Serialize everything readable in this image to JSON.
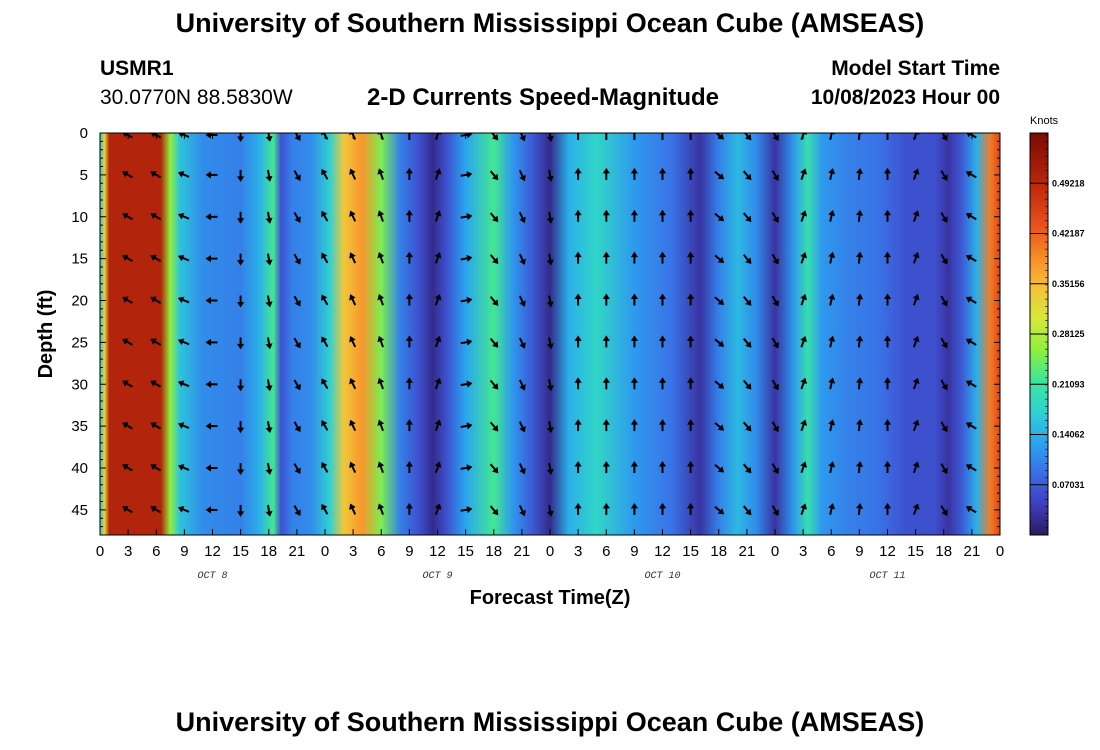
{
  "page": {
    "title": "University of Southern Mississippi Ocean Cube (AMSEAS)",
    "title_repeat": "University of Southern Mississippi Ocean Cube (AMSEAS)",
    "station_id": "USMR1",
    "station_coords": "30.0770N  88.5830W",
    "subtitle": "2-D Currents Speed-Magnitude",
    "model_start_label": "Model Start Time",
    "model_start_value": "10/08/2023 Hour 00"
  },
  "chart_data": {
    "type": "heatmap",
    "title": "2-D Currents Speed-Magnitude",
    "xlabel": "Forecast Time(Z)",
    "ylabel": "Depth (ft)",
    "x_tick_labels": [
      "0",
      "3",
      "6",
      "9",
      "12",
      "15",
      "18",
      "21",
      "0",
      "3",
      "6",
      "9",
      "12",
      "15",
      "18",
      "21",
      "0",
      "3",
      "6",
      "9",
      "12",
      "15",
      "18",
      "21",
      "0",
      "3",
      "6",
      "9",
      "12",
      "15",
      "18",
      "21",
      "0"
    ],
    "x_range_hours": [
      0,
      96
    ],
    "day_labels": [
      {
        "label": "OCT 8",
        "hour": 12
      },
      {
        "label": "OCT 9",
        "hour": 36
      },
      {
        "label": "OCT 10",
        "hour": 60
      },
      {
        "label": "OCT 11",
        "hour": 84
      }
    ],
    "y_tick_labels": [
      "0",
      "5",
      "10",
      "15",
      "20",
      "25",
      "30",
      "35",
      "40",
      "45"
    ],
    "y_range_ft": [
      0,
      48
    ],
    "colorbar": {
      "unit_label": "Knots",
      "range": [
        0,
        0.5625
      ],
      "tick_labels": [
        "0.07031",
        "0.14062",
        "0.21093",
        "0.28125",
        "0.35156",
        "0.42187",
        "0.49218"
      ],
      "colors": [
        "#2a1b5e",
        "#3f3ec0",
        "#3a6fe6",
        "#2aa5f0",
        "#2fd3d0",
        "#3de69a",
        "#8ef03c",
        "#d6e83a",
        "#f6c23a",
        "#f88a28",
        "#e8521c",
        "#c9300f",
        "#a01a08",
        "#7a0c04"
      ]
    },
    "speed_profile_knots": [
      {
        "hour": 0,
        "speed": 0.17
      },
      {
        "hour": 0.5,
        "speed": 0.33
      },
      {
        "hour": 1,
        "speed": 0.5
      },
      {
        "hour": 6.5,
        "speed": 0.5
      },
      {
        "hour": 7.5,
        "speed": 0.26
      },
      {
        "hour": 8.5,
        "speed": 0.16
      },
      {
        "hour": 11,
        "speed": 0.11
      },
      {
        "hour": 15,
        "speed": 0.1
      },
      {
        "hour": 17,
        "speed": 0.14
      },
      {
        "hour": 18.5,
        "speed": 0.22
      },
      {
        "hour": 19.3,
        "speed": 0.06
      },
      {
        "hour": 20.5,
        "speed": 0.1
      },
      {
        "hour": 22.5,
        "speed": 0.11
      },
      {
        "hour": 24.5,
        "speed": 0.17
      },
      {
        "hour": 26,
        "speed": 0.34
      },
      {
        "hour": 28,
        "speed": 0.38
      },
      {
        "hour": 30,
        "speed": 0.25
      },
      {
        "hour": 32,
        "speed": 0.1
      },
      {
        "hour": 34,
        "speed": 0.06
      },
      {
        "hour": 35.5,
        "speed": 0.02
      },
      {
        "hour": 37,
        "speed": 0.06
      },
      {
        "hour": 39,
        "speed": 0.13
      },
      {
        "hour": 42,
        "speed": 0.22
      },
      {
        "hour": 44,
        "speed": 0.12
      },
      {
        "hour": 46,
        "speed": 0.07
      },
      {
        "hour": 48,
        "speed": 0.02
      },
      {
        "hour": 50,
        "speed": 0.14
      },
      {
        "hour": 53,
        "speed": 0.18
      },
      {
        "hour": 57,
        "speed": 0.12
      },
      {
        "hour": 61,
        "speed": 0.09
      },
      {
        "hour": 64,
        "speed": 0.03
      },
      {
        "hour": 66,
        "speed": 0.1
      },
      {
        "hour": 68,
        "speed": 0.15
      },
      {
        "hour": 70,
        "speed": 0.11
      },
      {
        "hour": 72,
        "speed": 0.03
      },
      {
        "hour": 74,
        "speed": 0.12
      },
      {
        "hour": 75.5,
        "speed": 0.2
      },
      {
        "hour": 77,
        "speed": 0.12
      },
      {
        "hour": 80,
        "speed": 0.1
      },
      {
        "hour": 83,
        "speed": 0.09
      },
      {
        "hour": 86,
        "speed": 0.06
      },
      {
        "hour": 89,
        "speed": 0.06
      },
      {
        "hour": 90.5,
        "speed": 0.03
      },
      {
        "hour": 92,
        "speed": 0.07
      },
      {
        "hour": 93.5,
        "speed": 0.14
      },
      {
        "hour": 95,
        "speed": 0.4
      },
      {
        "hour": 96,
        "speed": 0.45
      }
    ],
    "vector_rows_ft": [
      0,
      5,
      10,
      15,
      20,
      25,
      30,
      35,
      40,
      45
    ],
    "vector_hours": [
      3,
      6,
      9,
      12,
      15,
      18,
      21,
      24,
      27,
      30,
      33,
      36,
      39,
      42,
      45,
      48,
      51,
      54,
      57,
      60,
      63,
      66,
      69,
      72,
      75,
      78,
      81,
      84,
      87,
      90,
      93
    ],
    "vector_direction_profile_deg": [
      {
        "hour": 0,
        "dir": 300
      },
      {
        "hour": 8,
        "dir": 300
      },
      {
        "hour": 12,
        "dir": 270
      },
      {
        "hour": 15,
        "dir": 180
      },
      {
        "hour": 18,
        "dir": 170
      },
      {
        "hour": 21,
        "dir": 150
      },
      {
        "hour": 24,
        "dir": 330
      },
      {
        "hour": 30,
        "dir": 340
      },
      {
        "hour": 36,
        "dir": 20
      },
      {
        "hour": 42,
        "dir": 140
      },
      {
        "hour": 48,
        "dir": 170
      },
      {
        "hour": 50,
        "dir": 0
      },
      {
        "hour": 63,
        "dir": 0
      },
      {
        "hour": 66,
        "dir": 130
      },
      {
        "hour": 72,
        "dir": 150
      },
      {
        "hour": 75,
        "dir": 20
      },
      {
        "hour": 84,
        "dir": 0
      },
      {
        "hour": 87,
        "dir": 20
      },
      {
        "hour": 90,
        "dir": 150
      },
      {
        "hour": 93,
        "dir": 300
      }
    ]
  }
}
